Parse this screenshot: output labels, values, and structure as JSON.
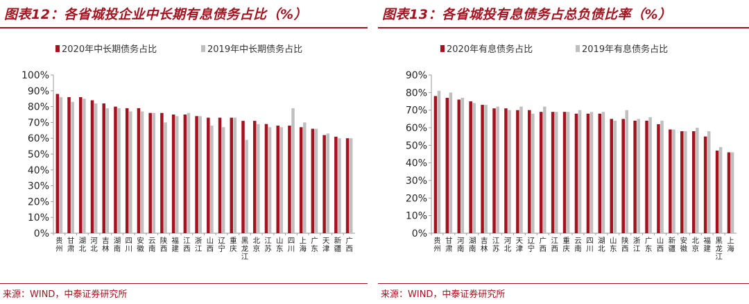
{
  "chart_data": [
    {
      "type": "bar",
      "title": "图表12：各省城投企业中长期有息债务占比（%）",
      "source": "来源：WIND，中泰证券研究所",
      "categories": [
        "贵州",
        "甘肃",
        "湖北",
        "河北",
        "吉林",
        "湖南",
        "四川",
        "安徽",
        "云南",
        "陕西",
        "福建",
        "江西",
        "浙江",
        "山西",
        "辽宁",
        "重庆",
        "黑龙江",
        "北京",
        "江苏",
        "山东",
        "四川",
        "上海",
        "广东",
        "天津",
        "新疆",
        "广西"
      ],
      "y_ticks": [
        "0%",
        "10%",
        "20%",
        "30%",
        "40%",
        "50%",
        "60%",
        "70%",
        "80%",
        "90%",
        "100%"
      ],
      "ylim": [
        0,
        100
      ],
      "grid": false,
      "legend_position": "top-left",
      "series": [
        {
          "name": "2020年中长期债务占比",
          "color": "#a3131f",
          "values": [
            88,
            86,
            86,
            84,
            82,
            80,
            79,
            79,
            76,
            76,
            75,
            75,
            74,
            73,
            73,
            73,
            71,
            71,
            69,
            68,
            68,
            67,
            66,
            62,
            61,
            60
          ]
        },
        {
          "name": "2019年中长期债务占比",
          "color": "#bfbfbf",
          "values": [
            86,
            83,
            85,
            82,
            79,
            79,
            77,
            77,
            76,
            70,
            74,
            76,
            74,
            68,
            67,
            73,
            59,
            69,
            67,
            67,
            79,
            70,
            66,
            63,
            60,
            60
          ]
        }
      ]
    },
    {
      "type": "bar",
      "title": "图表13：各省城投有息债务占总负债比率（%）",
      "source": "来源：WIND，中泰证券研究所",
      "categories": [
        "贵州",
        "甘肃",
        "河南",
        "湖南",
        "吉林",
        "江苏",
        "河北",
        "天津",
        "辽宁",
        "广西",
        "江西",
        "重庆",
        "云南",
        "四川",
        "湖北",
        "山东",
        "陕西",
        "浙江",
        "广东",
        "山西",
        "新疆",
        "安徽",
        "北京",
        "福建",
        "黑龙江",
        "上海"
      ],
      "y_ticks": [
        "0%",
        "10%",
        "20%",
        "30%",
        "40%",
        "50%",
        "60%",
        "70%",
        "80%",
        "90%"
      ],
      "ylim": [
        0,
        90
      ],
      "grid": false,
      "legend_position": "top-left",
      "series": [
        {
          "name": "2020年有息债务占比",
          "color": "#a3131f",
          "values": [
            78,
            77,
            76,
            75,
            73,
            71,
            71,
            70,
            70,
            69,
            69,
            69,
            68,
            68,
            68,
            65,
            65,
            64,
            64,
            62,
            59,
            58,
            58,
            55,
            47,
            46
          ]
        },
        {
          "name": "2019年有息债务占比",
          "color": "#bfbfbf",
          "values": [
            81,
            80,
            77,
            74,
            73,
            72,
            70,
            72,
            68,
            72,
            69,
            69,
            70,
            69,
            69,
            64,
            70,
            65,
            66,
            64,
            59,
            58,
            60,
            58,
            49,
            46
          ]
        }
      ]
    }
  ]
}
